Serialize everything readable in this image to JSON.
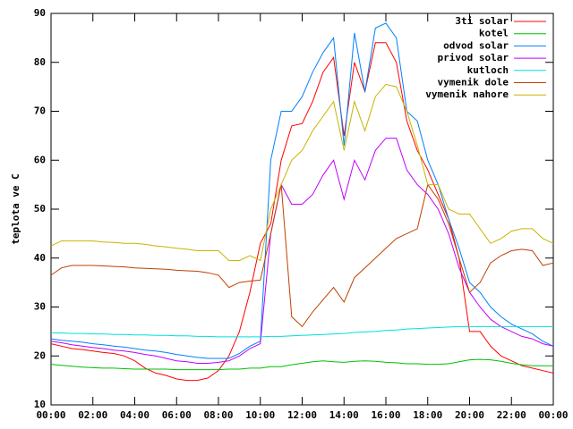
{
  "chart_data": {
    "type": "line",
    "y_label": "teplota ve C",
    "legend": "top right",
    "x": [
      0,
      0.5,
      1,
      1.5,
      2,
      2.5,
      3,
      3.5,
      4,
      4.5,
      5,
      5.5,
      6,
      6.5,
      7,
      7.5,
      8,
      8.5,
      9,
      9.5,
      10,
      10.5,
      11,
      11.5,
      12,
      12.5,
      13,
      13.5,
      14,
      14.5,
      15,
      15.5,
      16,
      16.5,
      17,
      17.5,
      18,
      18.5,
      19,
      19.5,
      20,
      20.5,
      21,
      21.5,
      22,
      22.5,
      23,
      23.5,
      24
    ],
    "xlim": [
      0,
      24
    ],
    "xticks": [
      {
        "value": 0,
        "label": "00:00"
      },
      {
        "value": 2,
        "label": "02:00"
      },
      {
        "value": 4,
        "label": "04:00"
      },
      {
        "value": 6,
        "label": "06:00"
      },
      {
        "value": 8,
        "label": "08:00"
      },
      {
        "value": 10,
        "label": "10:00"
      },
      {
        "value": 12,
        "label": "12:00"
      },
      {
        "value": 14,
        "label": "14:00"
      },
      {
        "value": 16,
        "label": "16:00"
      },
      {
        "value": 18,
        "label": "18:00"
      },
      {
        "value": 20,
        "label": "20:00"
      },
      {
        "value": 22,
        "label": "22:00"
      },
      {
        "value": 24,
        "label": "00:00"
      }
    ],
    "ylim": [
      10,
      90
    ],
    "yticks": [
      10,
      20,
      30,
      40,
      50,
      60,
      70,
      80,
      90
    ],
    "series": [
      {
        "name": "3ti solar",
        "color": "#ff0000",
        "values": [
          22.5,
          22,
          21.5,
          21.3,
          21,
          20.7,
          20.5,
          20,
          19,
          17.5,
          16.5,
          16,
          15.3,
          15,
          15,
          15.5,
          17,
          20,
          25,
          33,
          43,
          47,
          60,
          67,
          67.5,
          72,
          78,
          81,
          65,
          80,
          74,
          84,
          84,
          80,
          68,
          62,
          58,
          53,
          48,
          40,
          25,
          25,
          22,
          20,
          19,
          18,
          17.5,
          17,
          16.5
        ]
      },
      {
        "name": "kotel",
        "color": "#00c000",
        "values": [
          18.3,
          18.1,
          17.9,
          17.7,
          17.6,
          17.5,
          17.5,
          17.4,
          17.3,
          17.3,
          17.3,
          17.3,
          17.2,
          17.2,
          17.2,
          17.2,
          17.2,
          17.3,
          17.3,
          17.5,
          17.5,
          17.8,
          17.8,
          18.2,
          18.5,
          18.8,
          19,
          18.8,
          18.7,
          18.9,
          19,
          18.9,
          18.7,
          18.6,
          18.4,
          18.4,
          18.3,
          18.3,
          18.4,
          18.8,
          19.2,
          19.3,
          19.2,
          18.9,
          18.5,
          18.2,
          18,
          18,
          18
        ]
      },
      {
        "name": "odvod solar",
        "color": "#0080ff",
        "values": [
          23.5,
          23.2,
          23,
          22.8,
          22.5,
          22.3,
          22,
          21.8,
          21.5,
          21.2,
          21,
          20.7,
          20.3,
          20,
          19.7,
          19.5,
          19.5,
          19.5,
          20.5,
          22,
          23,
          60,
          70,
          70,
          73,
          78,
          82,
          85,
          63,
          86,
          74,
          87,
          88,
          85,
          70,
          68,
          60,
          55,
          48,
          42,
          35,
          33,
          30,
          28,
          26.5,
          25.5,
          24.5,
          23,
          22
        ]
      },
      {
        "name": "privod solar",
        "color": "#c000ff",
        "values": [
          23,
          22.7,
          22.3,
          22,
          21.7,
          21.5,
          21.2,
          21,
          20.7,
          20.3,
          20,
          19.5,
          19,
          18.8,
          18.5,
          18.5,
          18.7,
          19,
          20,
          21.5,
          22.5,
          45,
          55,
          51,
          51,
          53,
          57,
          60,
          52,
          60,
          56,
          62,
          64.5,
          64.5,
          58,
          55,
          53,
          50,
          45,
          38,
          33,
          30,
          27.5,
          26,
          25,
          24,
          23.5,
          22.5,
          22
        ]
      },
      {
        "name": "kutloch",
        "color": "#00e0e0",
        "values": [
          24.7,
          24.7,
          24.6,
          24.6,
          24.5,
          24.5,
          24.4,
          24.4,
          24.3,
          24.3,
          24.2,
          24.2,
          24.1,
          24.1,
          24,
          24,
          23.9,
          23.9,
          23.9,
          23.9,
          23.9,
          24,
          24,
          24.1,
          24.2,
          24.3,
          24.4,
          24.5,
          24.6,
          24.8,
          24.9,
          25,
          25.2,
          25.3,
          25.5,
          25.6,
          25.7,
          25.8,
          25.9,
          26,
          26,
          26,
          26,
          26,
          26,
          26,
          26,
          26,
          26
        ]
      },
      {
        "name": "vymenik dole",
        "color": "#c04000",
        "values": [
          36.5,
          38,
          38.5,
          38.5,
          38.5,
          38.4,
          38.3,
          38.2,
          38,
          37.9,
          37.8,
          37.7,
          37.5,
          37.4,
          37.3,
          37,
          36.5,
          34,
          35,
          35.3,
          35.5,
          45,
          55,
          28,
          26,
          29,
          31.5,
          34,
          31,
          36,
          38,
          40,
          42,
          44,
          45,
          46,
          55,
          52,
          47,
          40,
          33,
          35,
          39,
          40.5,
          41.5,
          41.8,
          41.5,
          38.5,
          39
        ]
      },
      {
        "name": "vymenik nahore",
        "color": "#c8b400",
        "values": [
          42.5,
          43.5,
          43.5,
          43.5,
          43.5,
          43.3,
          43.2,
          43,
          43,
          42.8,
          42.5,
          42.3,
          42,
          41.8,
          41.5,
          41.5,
          41.5,
          39.5,
          39.5,
          40.5,
          39.5,
          50,
          55,
          60,
          62,
          66,
          69,
          72,
          62,
          72,
          66,
          73,
          75.5,
          75,
          70,
          63,
          55,
          55,
          50,
          49,
          49,
          46,
          43,
          44,
          45.5,
          46,
          46,
          44,
          43
        ]
      }
    ]
  }
}
